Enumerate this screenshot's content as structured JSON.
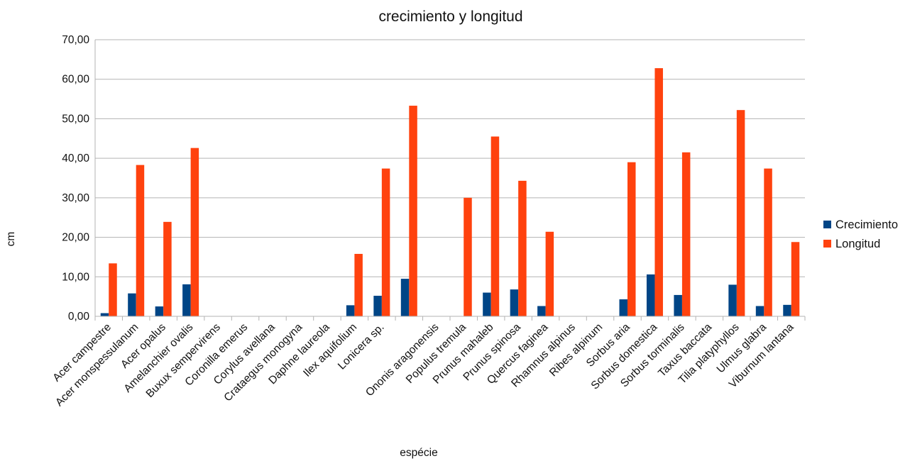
{
  "chart_data": {
    "type": "bar",
    "title": "crecimiento y longitud",
    "xlabel": "espécie",
    "ylabel": "cm",
    "ylim": [
      0,
      70
    ],
    "yticks": [
      "0,00",
      "10,00",
      "20,00",
      "30,00",
      "40,00",
      "50,00",
      "60,00",
      "70,00"
    ],
    "grid": true,
    "legend": "right",
    "categories": [
      "Acer campestre",
      "Acer monspessulanum",
      "Acer opalus",
      "Amelanchier ovalis",
      "Buxux sempervirens",
      "Coronilla emerus",
      "Corylus avellana",
      "Crataegus monogyna",
      "Daphne laureola",
      "Ilex aquifolium",
      "Lonicera sp.",
      "",
      "Ononis aragonensis",
      "Populus tremula",
      "Prunus mahaleb",
      "Prunus spinosa",
      "Quercus faginea",
      "Rhamnus alpinus",
      "Ribes alpinum",
      "Sorbus aria",
      "Sorbus domestica",
      "Sorbus torminalis",
      "Taxus baccata",
      "Tilia platyphyllos",
      "Ulmus glabra",
      "Viburnum lantana"
    ],
    "series": [
      {
        "name": "Crecimiento",
        "color": "#004586",
        "values": [
          0.8,
          5.8,
          2.5,
          8.1,
          null,
          null,
          null,
          null,
          null,
          2.8,
          5.2,
          9.5,
          null,
          null,
          6.0,
          6.8,
          2.6,
          null,
          null,
          4.3,
          10.6,
          5.4,
          null,
          8.0,
          2.6,
          2.9
        ]
      },
      {
        "name": "Longitud",
        "color": "#ff420e",
        "values": [
          13.4,
          38.3,
          23.9,
          42.6,
          null,
          null,
          null,
          null,
          null,
          15.8,
          37.4,
          53.3,
          null,
          30.0,
          45.5,
          34.3,
          21.4,
          null,
          null,
          39.0,
          62.8,
          41.5,
          null,
          52.2,
          37.4,
          18.8
        ]
      }
    ]
  }
}
